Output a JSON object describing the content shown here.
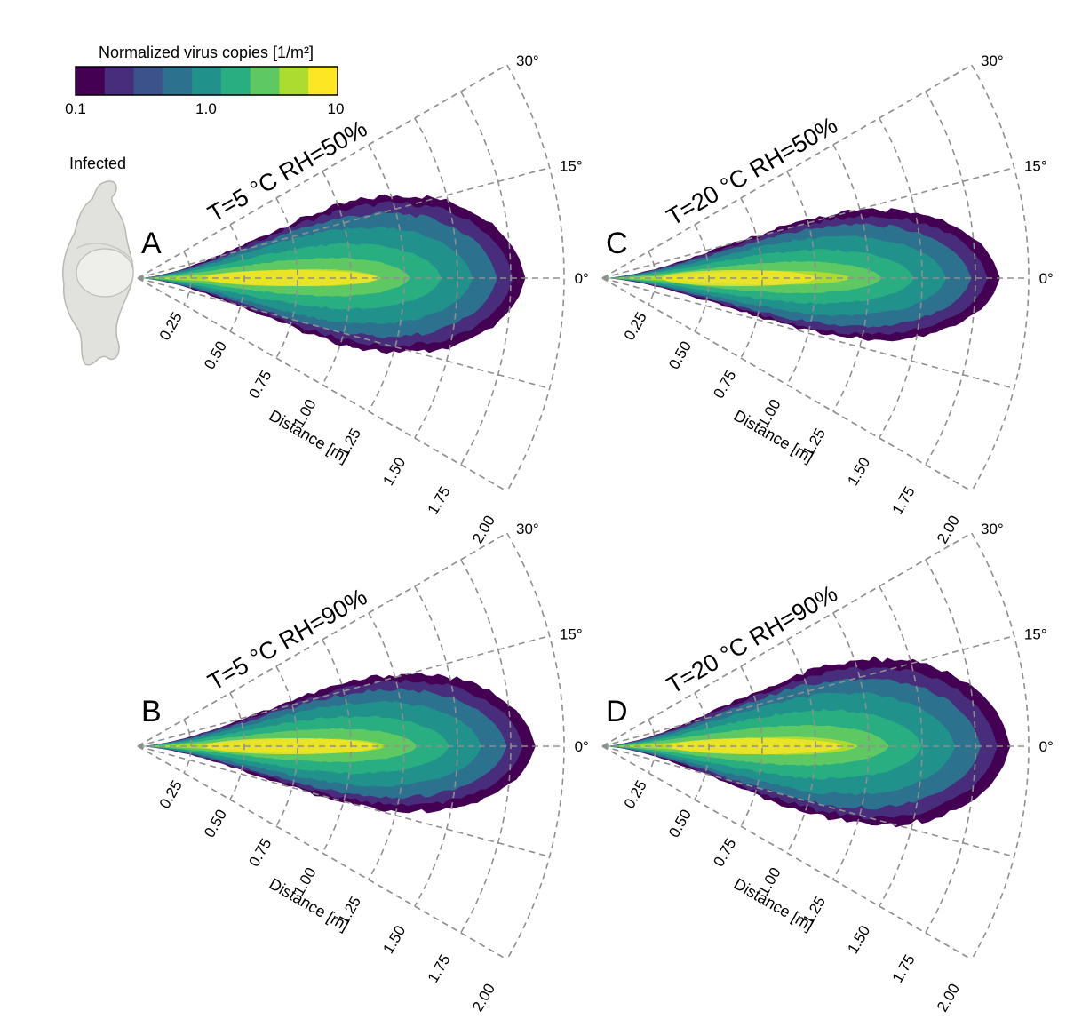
{
  "colorbar": {
    "title": "Normalized virus copies [1/m²]",
    "ticks": [
      "0.1",
      "1.0",
      "10"
    ],
    "colors": [
      "#440154",
      "#472d7b",
      "#3b528b",
      "#2c728e",
      "#21918c",
      "#28ae80",
      "#5ec962",
      "#addc30",
      "#fde725"
    ]
  },
  "figure_label": "Infected",
  "chart_data": [
    {
      "type": "heatmap",
      "panel": "A",
      "title": "T=5 °C RH=50%",
      "coordinate_system": "polar",
      "radial_axis": {
        "label": "Distance [m]",
        "range": [
          0,
          2.0
        ],
        "ticks": [
          "0.25",
          "0.50",
          "0.75",
          "1.00",
          "1.25",
          "1.50",
          "1.75",
          "2.00"
        ]
      },
      "angular_axis": {
        "range_deg": [
          -30,
          30
        ],
        "labels": [
          "30°",
          "15°",
          "0°"
        ]
      },
      "scale": "log",
      "range": [
        0.1,
        10
      ],
      "plume": {
        "max_distance_m": 1.9,
        "half_width_deg": 20,
        "peak_distance_m": 0.9
      }
    },
    {
      "type": "heatmap",
      "panel": "B",
      "title": "T=5 °C RH=90%",
      "coordinate_system": "polar",
      "radial_axis": {
        "label": "Distance [m]",
        "range": [
          0,
          2.0
        ],
        "ticks": [
          "0.25",
          "0.50",
          "0.75",
          "1.00",
          "1.25",
          "1.50",
          "1.75",
          "2.00"
        ]
      },
      "angular_axis": {
        "range_deg": [
          -30,
          30
        ],
        "labels": [
          "30°",
          "15°",
          "0°"
        ]
      },
      "scale": "log",
      "range": [
        0.1,
        10
      ],
      "plume": {
        "max_distance_m": 1.95,
        "half_width_deg": 17,
        "peak_distance_m": 0.9
      }
    },
    {
      "type": "heatmap",
      "panel": "C",
      "title": "T=20 °C RH=50%",
      "coordinate_system": "polar",
      "radial_axis": {
        "label": "Distance [m]",
        "range": [
          0,
          2.0
        ],
        "ticks": [
          "0.25",
          "0.50",
          "0.75",
          "1.00",
          "1.25",
          "1.50",
          "1.75",
          "2.00"
        ]
      },
      "angular_axis": {
        "range_deg": [
          -30,
          30
        ],
        "labels": [
          "30°",
          "15°",
          "0°"
        ]
      },
      "scale": "log",
      "range": [
        0.1,
        10
      ],
      "plume": {
        "max_distance_m": 1.95,
        "half_width_deg": 16,
        "peak_distance_m": 0.8
      }
    },
    {
      "type": "heatmap",
      "panel": "D",
      "title": "T=20 °C RH=90%",
      "coordinate_system": "polar",
      "radial_axis": {
        "label": "Distance [m]",
        "range": [
          0,
          2.0
        ],
        "ticks": [
          "0.25",
          "0.50",
          "0.75",
          "1.00",
          "1.25",
          "1.50",
          "1.75",
          "2.00"
        ]
      },
      "angular_axis": {
        "range_deg": [
          -30,
          30
        ],
        "labels": [
          "30°",
          "15°",
          "0°"
        ]
      },
      "scale": "log",
      "range": [
        0.1,
        10
      ],
      "plume": {
        "max_distance_m": 2.0,
        "half_width_deg": 20,
        "peak_distance_m": 0.9
      }
    }
  ]
}
